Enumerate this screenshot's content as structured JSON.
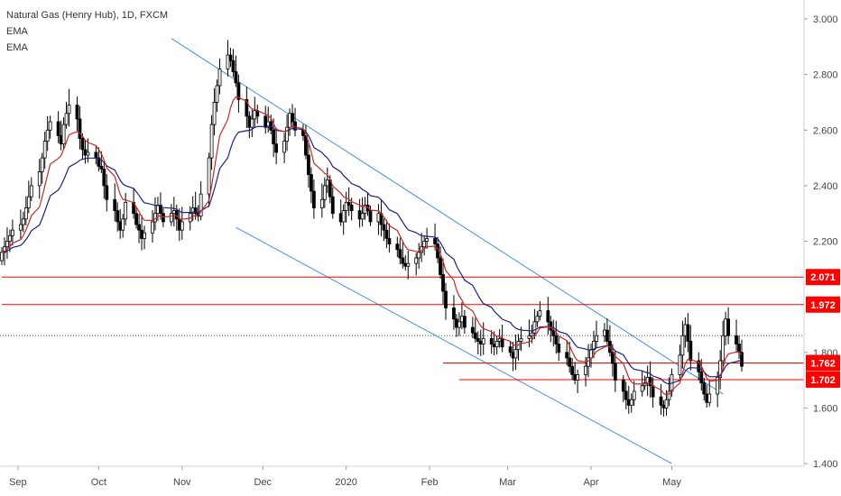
{
  "legend": {
    "symbol": "Natural Gas (Henry Hub), 1D, FXCM",
    "ema1": "EMA",
    "ema2": "EMA"
  },
  "colors": {
    "up_fill": "#ffffff",
    "down_fill": "#000000",
    "candle_outline": "#000000",
    "ema_fast": "#c62828",
    "ema_slow": "#1a237e",
    "channel": "#4a90d9",
    "level": "#ff0000",
    "level_tag": "#ff0000",
    "price_line": "#555555"
  },
  "chart_data": {
    "type": "candlestick",
    "title": "Natural Gas (Henry Hub), 1D, FXCM",
    "yticks": [
      "3.000",
      "2.800",
      "2.600",
      "2.400",
      "2.200",
      "1.800",
      "1.600",
      "1.400"
    ],
    "xticks": [
      "Sep",
      "Oct",
      "Nov",
      "Dec",
      "2020",
      "Feb",
      "Mar",
      "Apr",
      "May"
    ],
    "x_start": "2019-08-26",
    "ylim": [
      1.38,
      3.03
    ],
    "current_price": 1.86,
    "levels": [
      {
        "value": 2.071,
        "label": "2.071"
      },
      {
        "value": 1.972,
        "label": "1.972"
      },
      {
        "value": 1.762,
        "label": "1.762"
      },
      {
        "value": 1.702,
        "label": "1.702"
      }
    ],
    "channel": {
      "upper": [
        {
          "date": "2019-10-28",
          "value": 2.93
        },
        {
          "date": "2020-05-20",
          "value": 1.65
        }
      ],
      "lower": [
        {
          "date": "2019-11-21",
          "value": 2.25
        },
        {
          "date": "2020-05-01",
          "value": 1.4
        }
      ]
    },
    "closes": [
      2.16,
      2.18,
      2.2,
      2.22,
      2.24,
      2.26,
      2.28,
      2.32,
      2.36,
      2.4,
      2.45,
      2.5,
      2.56,
      2.6,
      2.63,
      2.58,
      2.55,
      2.62,
      2.66,
      2.69,
      2.64,
      2.57,
      2.53,
      2.51,
      2.52,
      2.5,
      2.47,
      2.46,
      2.4,
      2.35,
      2.31,
      2.27,
      2.24,
      2.28,
      2.34,
      2.3,
      2.26,
      2.24,
      2.21,
      2.23,
      2.27,
      2.3,
      2.33,
      2.3,
      2.27,
      2.3,
      2.31,
      2.28,
      2.24,
      2.27,
      2.3,
      2.32,
      2.3,
      2.29,
      2.37,
      2.5,
      2.62,
      2.7,
      2.76,
      2.82,
      2.87,
      2.85,
      2.81,
      2.77,
      2.71,
      2.65,
      2.61,
      2.64,
      2.67,
      2.65,
      2.61,
      2.63,
      2.6,
      2.55,
      2.52,
      2.56,
      2.61,
      2.66,
      2.63,
      2.6,
      2.58,
      2.51,
      2.44,
      2.38,
      2.32,
      2.35,
      2.4,
      2.42,
      2.36,
      2.3,
      2.27,
      2.31,
      2.34,
      2.33,
      2.31,
      2.28,
      2.3,
      2.33,
      2.31,
      2.27,
      2.3,
      2.26,
      2.24,
      2.21,
      2.19,
      2.17,
      2.14,
      2.12,
      2.11,
      2.12,
      2.14,
      2.16,
      2.18,
      2.2,
      2.21,
      2.19,
      2.14,
      2.08,
      2.02,
      1.96,
      1.92,
      1.89,
      1.91,
      1.93,
      1.89,
      1.87,
      1.85,
      1.84,
      1.83,
      1.85,
      1.83,
      1.82,
      1.84,
      1.85,
      1.82,
      1.8,
      1.78,
      1.81,
      1.84,
      1.85,
      1.86,
      1.87,
      1.91,
      1.93,
      1.95,
      1.91,
      1.88,
      1.86,
      1.83,
      1.8,
      1.78,
      1.75,
      1.72,
      1.7,
      1.72,
      1.75,
      1.78,
      1.81,
      1.84,
      1.86,
      1.88,
      1.84,
      1.8,
      1.76,
      1.7,
      1.66,
      1.63,
      1.61,
      1.63,
      1.66,
      1.68,
      1.69,
      1.71,
      1.68,
      1.64,
      1.61,
      1.6,
      1.63,
      1.66,
      1.72,
      1.79,
      1.86,
      1.9,
      1.84,
      1.77,
      1.73,
      1.69,
      1.65,
      1.62,
      1.65,
      1.71,
      1.77,
      1.86,
      1.92,
      1.86,
      1.83,
      1.8,
      1.75
    ]
  }
}
